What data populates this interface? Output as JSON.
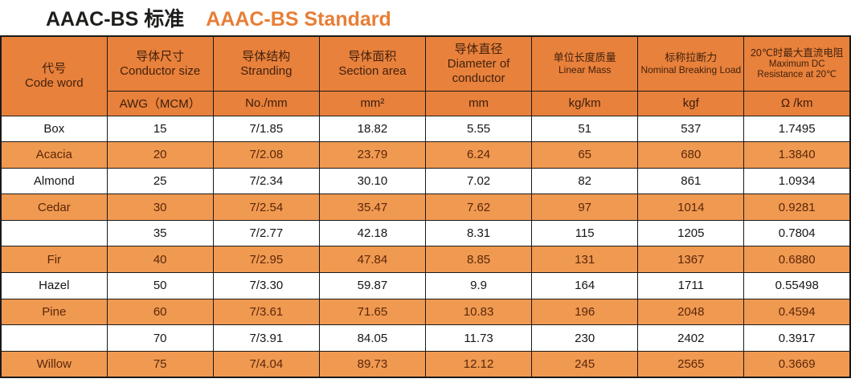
{
  "title": {
    "zh": "AAAC-BS 标准",
    "en": "AAAC-BS Standard"
  },
  "table": {
    "columns": [
      {
        "zh": "代号",
        "en": "Code word",
        "unit": ""
      },
      {
        "zh": "导体尺寸",
        "en": "Conductor size",
        "unit": "AWG（MCM）"
      },
      {
        "zh": "导体结构",
        "en": "Stranding",
        "unit": "No./mm"
      },
      {
        "zh": "导体面积",
        "en": "Section area",
        "unit": "mm²"
      },
      {
        "zh": "导体直径",
        "en": "Diameter of conductor",
        "unit": "mm"
      },
      {
        "zh": "单位长度质量",
        "en": "Linear Mass",
        "unit": "kg/km"
      },
      {
        "zh": "标称拉断力",
        "en": "Nominal Breaking Load",
        "unit": "kgf"
      },
      {
        "zh": "20℃时最大直流电阻",
        "en": "Maximum DC Resistance at 20℃",
        "unit": "Ω /km"
      }
    ],
    "rows": [
      [
        "Box",
        "15",
        "7/1.85",
        "18.82",
        "5.55",
        "51",
        "537",
        "1.7495"
      ],
      [
        "Acacia",
        "20",
        "7/2.08",
        "23.79",
        "6.24",
        "65",
        "680",
        "1.3840"
      ],
      [
        "Almond",
        "25",
        "7/2.34",
        "30.10",
        "7.02",
        "82",
        "861",
        "1.0934"
      ],
      [
        "Cedar",
        "30",
        "7/2.54",
        "35.47",
        "7.62",
        "97",
        "1014",
        "0.9281"
      ],
      [
        "",
        "35",
        "7/2.77",
        "42.18",
        "8.31",
        "115",
        "1205",
        "0.7804"
      ],
      [
        "Fir",
        "40",
        "7/2.95",
        "47.84",
        "8.85",
        "131",
        "1367",
        "0.6880"
      ],
      [
        "Hazel",
        "50",
        "7/3.30",
        "59.87",
        "9.9",
        "164",
        "1711",
        "0.55498"
      ],
      [
        "Pine",
        "60",
        "7/3.61",
        "71.65",
        "10.83",
        "196",
        "2048",
        "0.4594"
      ],
      [
        "",
        "70",
        "7/3.91",
        "84.05",
        "11.73",
        "230",
        "2402",
        "0.3917"
      ],
      [
        "Willow",
        "75",
        "7/4.04",
        "89.73",
        "12.12",
        "245",
        "2565",
        "0.3669"
      ]
    ]
  },
  "colors": {
    "accent_orange": "#e87e36",
    "header_bg": "#e8813c",
    "alt_row_bg": "#f09951",
    "dark_brown_text": "#5b2708",
    "border": "#1a1a1a"
  }
}
